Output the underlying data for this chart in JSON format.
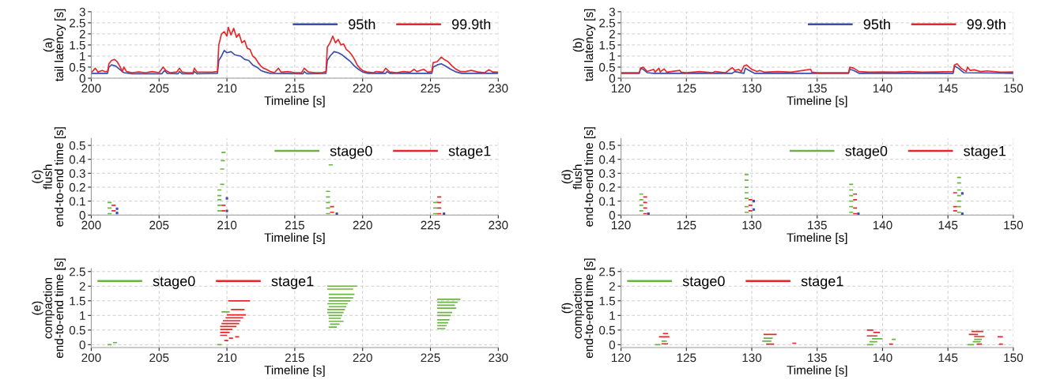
{
  "chart_data": [
    {
      "type": "line",
      "ylabel": "(a)\ntail latency [s]",
      "xlabel": "Timeline [s]",
      "xlim": [
        200,
        230
      ],
      "xticks": [
        200,
        205,
        210,
        215,
        220,
        225,
        230
      ],
      "ylim": [
        0,
        3
      ],
      "yticks": [
        0,
        0.5,
        1,
        1.5,
        2,
        2.5,
        3
      ],
      "grid": true,
      "legend": "top right",
      "line_style": "solid",
      "marker": "none",
      "series": [
        {
          "name": "95th",
          "color": "#3a4fa8",
          "x": [
            200,
            201.2,
            201.3,
            201.5,
            201.8,
            202.1,
            202.4,
            203,
            205.2,
            205.4,
            205.6,
            206.4,
            206.5,
            206.7,
            207.5,
            207.6,
            207.8,
            209.3,
            209.4,
            209.6,
            209.8,
            210,
            210.3,
            210.6,
            211,
            211.3,
            211.6,
            211.9,
            212.2,
            212.5,
            212.8,
            213.2,
            215.6,
            215.7,
            215.9,
            217.3,
            217.4,
            217.6,
            217.9,
            218.2,
            218.5,
            218.8,
            219.1,
            219.4,
            219.7,
            220,
            220.4,
            221.7,
            221.8,
            222,
            225.1,
            225.2,
            225.5,
            225.8,
            226.1,
            226.5,
            226.9,
            227.3,
            230
          ],
          "values": [
            0.22,
            0.22,
            0.5,
            0.6,
            0.55,
            0.4,
            0.25,
            0.2,
            0.2,
            0.35,
            0.22,
            0.2,
            0.3,
            0.2,
            0.2,
            0.3,
            0.2,
            0.22,
            0.8,
            1.0,
            1.25,
            1.15,
            1.2,
            1.05,
            1.0,
            0.85,
            0.8,
            0.6,
            0.5,
            0.35,
            0.28,
            0.22,
            0.2,
            0.3,
            0.2,
            0.22,
            0.8,
            1.0,
            1.2,
            1.15,
            1.05,
            0.9,
            0.75,
            0.55,
            0.4,
            0.28,
            0.22,
            0.22,
            0.3,
            0.22,
            0.22,
            0.5,
            0.6,
            0.65,
            0.55,
            0.4,
            0.28,
            0.22,
            0.22
          ]
        },
        {
          "name": "99.9th",
          "color": "#e8262a",
          "x": [
            200,
            200.3,
            200.5,
            200.8,
            201,
            201.2,
            201.3,
            201.5,
            201.7,
            201.9,
            202.1,
            202.3,
            202.4,
            202.6,
            203,
            203.5,
            204,
            204.5,
            205,
            205.3,
            205.5,
            205.8,
            206.3,
            206.5,
            206.7,
            207,
            207.5,
            207.6,
            207.8,
            208.5,
            209,
            209.3,
            209.4,
            209.6,
            209.8,
            210,
            210.1,
            210.3,
            210.5,
            210.7,
            210.9,
            211.1,
            211.3,
            211.5,
            211.7,
            211.9,
            212.1,
            212.3,
            212.5,
            212.7,
            212.9,
            213.2,
            213.5,
            213.8,
            214,
            214.5,
            215,
            215.5,
            215.7,
            216,
            216.5,
            217,
            217.3,
            217.4,
            217.6,
            217.8,
            218,
            218.2,
            218.4,
            218.6,
            218.8,
            219,
            219.2,
            219.4,
            219.6,
            219.8,
            220,
            220.3,
            220.8,
            221,
            221.5,
            221.7,
            222,
            222.5,
            223,
            223.5,
            223.8,
            224,
            224.5,
            224.8,
            225.1,
            225.2,
            225.5,
            225.8,
            226,
            226.3,
            226.6,
            226.9,
            227.2,
            227.6,
            228,
            228.5,
            229,
            229.3,
            229.6,
            230
          ],
          "values": [
            0.25,
            0.45,
            0.28,
            0.35,
            0.3,
            0.3,
            0.65,
            0.8,
            0.85,
            0.75,
            0.55,
            0.3,
            0.5,
            0.3,
            0.25,
            0.28,
            0.25,
            0.3,
            0.25,
            0.5,
            0.35,
            0.25,
            0.28,
            0.45,
            0.28,
            0.25,
            0.25,
            0.45,
            0.28,
            0.27,
            0.28,
            0.3,
            1.5,
            2.0,
            2.1,
            1.9,
            2.3,
            1.95,
            2.25,
            1.85,
            2.0,
            1.6,
            1.7,
            1.35,
            1.3,
            1.0,
            0.9,
            0.7,
            0.55,
            0.45,
            0.4,
            0.3,
            0.25,
            0.45,
            0.27,
            0.3,
            0.25,
            0.25,
            0.45,
            0.28,
            0.25,
            0.25,
            0.3,
            1.4,
            1.6,
            1.9,
            1.6,
            1.75,
            1.5,
            1.55,
            1.3,
            1.2,
            1.05,
            0.85,
            0.6,
            0.45,
            0.35,
            0.28,
            0.25,
            0.3,
            0.27,
            0.45,
            0.28,
            0.25,
            0.3,
            0.27,
            0.4,
            0.3,
            0.4,
            0.27,
            0.3,
            0.7,
            0.75,
            0.95,
            0.85,
            0.75,
            0.55,
            0.4,
            0.3,
            0.3,
            0.35,
            0.28,
            0.25,
            0.38,
            0.28,
            0.27
          ]
        }
      ]
    },
    {
      "type": "line",
      "ylabel": "(b)\ntail latency [s]",
      "xlabel": "Timeline [s]",
      "xlim": [
        120,
        150
      ],
      "xticks": [
        120,
        125,
        130,
        135,
        140,
        145,
        150
      ],
      "ylim": [
        0,
        3
      ],
      "yticks": [
        0,
        0.5,
        1,
        1.5,
        2,
        2.5,
        3
      ],
      "grid": true,
      "legend": "top right",
      "line_style": "solid",
      "marker": "none",
      "series": [
        {
          "name": "95th",
          "color": "#3a4fa8",
          "x": [
            120,
            121.4,
            121.5,
            121.7,
            122,
            122.5,
            128.5,
            128.7,
            129.4,
            129.5,
            129.8,
            130.2,
            137.4,
            137.5,
            137.8,
            138.2,
            145.4,
            145.5,
            145.8,
            146.2,
            150
          ],
          "values": [
            0.22,
            0.22,
            0.45,
            0.4,
            0.25,
            0.22,
            0.22,
            0.3,
            0.22,
            0.45,
            0.35,
            0.22,
            0.22,
            0.4,
            0.35,
            0.22,
            0.22,
            0.55,
            0.45,
            0.25,
            0.22
          ]
        },
        {
          "name": "99.9th",
          "color": "#e8262a",
          "x": [
            120,
            121.4,
            121.5,
            121.7,
            122,
            122.5,
            122.6,
            122.9,
            123,
            123.3,
            123.5,
            124.5,
            124.6,
            125,
            126,
            127,
            127.2,
            128,
            128.5,
            128.7,
            129,
            129.2,
            129.4,
            129.6,
            130,
            130.4,
            130.6,
            131,
            132,
            133,
            134.5,
            134.6,
            135,
            137.4,
            137.5,
            137.8,
            138.2,
            139,
            140,
            141,
            142,
            143,
            144,
            145.4,
            145.5,
            145.7,
            146,
            146.4,
            146.5,
            146.7,
            147,
            147.5,
            148,
            149,
            150
          ],
          "values": [
            0.25,
            0.25,
            0.45,
            0.5,
            0.3,
            0.4,
            0.27,
            0.45,
            0.28,
            0.42,
            0.27,
            0.35,
            0.27,
            0.25,
            0.3,
            0.25,
            0.3,
            0.25,
            0.48,
            0.35,
            0.4,
            0.3,
            0.55,
            0.6,
            0.4,
            0.3,
            0.35,
            0.27,
            0.3,
            0.27,
            0.4,
            0.27,
            0.25,
            0.25,
            0.5,
            0.45,
            0.3,
            0.27,
            0.28,
            0.27,
            0.3,
            0.27,
            0.28,
            0.3,
            0.6,
            0.65,
            0.45,
            0.3,
            0.5,
            0.35,
            0.38,
            0.3,
            0.33,
            0.27,
            0.28
          ]
        }
      ]
    },
    {
      "type": "line",
      "ylabel": "(c)\nflush\nend-to-end time [s]",
      "xlabel": "Timeline [s]",
      "xlim": [
        200,
        230
      ],
      "xticks": [
        200,
        205,
        210,
        215,
        220,
        225,
        230
      ],
      "ylim": [
        0,
        0.55
      ],
      "yticks": [
        0,
        0.1,
        0.2,
        0.3,
        0.4,
        0.5
      ],
      "grid": true,
      "legend": "top right",
      "line_style": "solid",
      "marker": "none",
      "series": [
        {
          "name": "stage0",
          "color": "#6ab344",
          "x": [
            201.2,
            201.5
          ],
          "values": [
            0.09,
            0.09
          ]
        },
        {
          "color": "#6ab344",
          "x": [
            201.2,
            201.5
          ],
          "values": [
            0.05,
            0.05
          ]
        },
        {
          "color": "#6ab344",
          "x": [
            201.2,
            201.5
          ],
          "values": [
            0.01,
            0.01
          ]
        },
        {
          "color": "#6ab344",
          "x": [
            209.3,
            209.6
          ],
          "values": [
            0.07,
            0.07
          ]
        },
        {
          "color": "#6ab344",
          "x": [
            209.3,
            209.6
          ],
          "values": [
            0.03,
            0.03
          ]
        },
        {
          "color": "#6ab344",
          "x": [
            209.6,
            209.9
          ],
          "values": [
            0.45,
            0.45
          ]
        },
        {
          "color": "#6ab344",
          "x": [
            209.55,
            209.85
          ],
          "values": [
            0.39,
            0.39
          ]
        },
        {
          "color": "#6ab344",
          "x": [
            209.5,
            209.8
          ],
          "values": [
            0.33,
            0.33
          ]
        },
        {
          "color": "#6ab344",
          "x": [
            209.5,
            209.8
          ],
          "values": [
            0.22,
            0.22
          ]
        },
        {
          "color": "#6ab344",
          "x": [
            209.3,
            209.6
          ],
          "values": [
            0.18,
            0.18
          ]
        },
        {
          "color": "#6ab344",
          "x": [
            209.3,
            209.6
          ],
          "values": [
            0.14,
            0.14
          ]
        },
        {
          "color": "#6ab344",
          "x": [
            209.3,
            209.6
          ],
          "values": [
            0.11,
            0.11
          ]
        },
        {
          "color": "#6ab344",
          "x": [
            217.5,
            217.8
          ],
          "values": [
            0.36,
            0.36
          ]
        },
        {
          "color": "#6ab344",
          "x": [
            217.3,
            217.6
          ],
          "values": [
            0.17,
            0.17
          ]
        },
        {
          "color": "#6ab344",
          "x": [
            217.3,
            217.6
          ],
          "values": [
            0.13,
            0.13
          ]
        },
        {
          "color": "#6ab344",
          "x": [
            217.3,
            217.6
          ],
          "values": [
            0.09,
            0.09
          ]
        },
        {
          "color": "#6ab344",
          "x": [
            217.3,
            217.6
          ],
          "values": [
            0.05,
            0.05
          ]
        },
        {
          "color": "#6ab344",
          "x": [
            217.3,
            217.6
          ],
          "values": [
            0.01,
            0.01
          ]
        },
        {
          "color": "#6ab344",
          "x": [
            225.2,
            225.5
          ],
          "values": [
            0.09,
            0.09
          ]
        },
        {
          "color": "#6ab344",
          "x": [
            225.2,
            225.5
          ],
          "values": [
            0.05,
            0.05
          ]
        },
        {
          "color": "#6ab344",
          "x": [
            225.2,
            225.5
          ],
          "values": [
            0.01,
            0.01
          ]
        },
        {
          "name": "stage1",
          "color": "#e8262a",
          "x": [
            201.5,
            201.8
          ],
          "values": [
            0.07,
            0.07
          ]
        },
        {
          "color": "#e8262a",
          "x": [
            201.5,
            201.8
          ],
          "values": [
            0.03,
            0.03
          ]
        },
        {
          "color": "#e8262a",
          "x": [
            209.6,
            209.9
          ],
          "values": [
            0.07,
            0.07
          ]
        },
        {
          "color": "#e8262a",
          "x": [
            209.6,
            209.9
          ],
          "values": [
            0.03,
            0.03
          ]
        },
        {
          "color": "#e8262a",
          "x": [
            217.6,
            217.9
          ],
          "values": [
            0.06,
            0.06
          ]
        },
        {
          "color": "#e8262a",
          "x": [
            217.6,
            217.9
          ],
          "values": [
            0.02,
            0.02
          ]
        },
        {
          "color": "#e8262a",
          "x": [
            225.5,
            225.8
          ],
          "values": [
            0.13,
            0.13
          ]
        },
        {
          "color": "#e8262a",
          "x": [
            225.5,
            225.8
          ],
          "values": [
            0.09,
            0.09
          ]
        },
        {
          "color": "#e8262a",
          "x": [
            225.5,
            225.8
          ],
          "values": [
            0.05,
            0.05
          ]
        },
        {
          "color": "#e8262a",
          "x": [
            225.5,
            225.8
          ],
          "values": [
            0.01,
            0.01
          ]
        },
        {
          "type": "scatter",
          "color": "#3a4fa8",
          "marker": "square",
          "x": [
            201.9,
            201.9,
            210.0,
            210.0,
            218.1,
            226.0
          ],
          "values": [
            0.045,
            0.015,
            0.12,
            0.03,
            0.01,
            0.01
          ]
        }
      ]
    },
    {
      "type": "line",
      "ylabel": "(d)\nflush\nend-to-end time [s]",
      "xlabel": "Timeline [s]",
      "xlim": [
        120,
        150
      ],
      "xticks": [
        120,
        125,
        130,
        135,
        140,
        145,
        150
      ],
      "ylim": [
        0,
        0.55
      ],
      "yticks": [
        0,
        0.1,
        0.2,
        0.3,
        0.4,
        0.5
      ],
      "grid": true,
      "legend": "top right",
      "line_style": "solid",
      "marker": "none",
      "series": [
        {
          "name": "stage0",
          "color": "#6ab344",
          "x": [
            121.4,
            121.7
          ],
          "values": [
            0.15,
            0.15
          ]
        },
        {
          "color": "#6ab344",
          "x": [
            121.4,
            121.7
          ],
          "values": [
            0.11,
            0.11
          ]
        },
        {
          "color": "#6ab344",
          "x": [
            121.4,
            121.7
          ],
          "values": [
            0.07,
            0.07
          ]
        },
        {
          "color": "#6ab344",
          "x": [
            121.4,
            121.7
          ],
          "values": [
            0.03,
            0.03
          ]
        },
        {
          "color": "#6ab344",
          "x": [
            129.45,
            129.75
          ],
          "values": [
            0.29,
            0.29
          ]
        },
        {
          "color": "#6ab344",
          "x": [
            129.45,
            129.75
          ],
          "values": [
            0.25,
            0.25
          ]
        },
        {
          "color": "#6ab344",
          "x": [
            129.45,
            129.75
          ],
          "values": [
            0.2,
            0.2
          ]
        },
        {
          "color": "#6ab344",
          "x": [
            129.45,
            129.75
          ],
          "values": [
            0.16,
            0.16
          ]
        },
        {
          "color": "#6ab344",
          "x": [
            129.45,
            129.75
          ],
          "values": [
            0.12,
            0.12
          ]
        },
        {
          "color": "#6ab344",
          "x": [
            129.45,
            129.75
          ],
          "values": [
            0.06,
            0.06
          ]
        },
        {
          "color": "#6ab344",
          "x": [
            129.45,
            129.75
          ],
          "values": [
            0.02,
            0.02
          ]
        },
        {
          "color": "#6ab344",
          "x": [
            137.45,
            137.75
          ],
          "values": [
            0.22,
            0.22
          ]
        },
        {
          "color": "#6ab344",
          "x": [
            137.45,
            137.75
          ],
          "values": [
            0.18,
            0.18
          ]
        },
        {
          "color": "#6ab344",
          "x": [
            137.45,
            137.75
          ],
          "values": [
            0.14,
            0.14
          ]
        },
        {
          "color": "#6ab344",
          "x": [
            137.45,
            137.75
          ],
          "values": [
            0.1,
            0.1
          ]
        },
        {
          "color": "#6ab344",
          "x": [
            137.45,
            137.75
          ],
          "values": [
            0.06,
            0.06
          ]
        },
        {
          "color": "#6ab344",
          "x": [
            137.45,
            137.75
          ],
          "values": [
            0.02,
            0.02
          ]
        },
        {
          "color": "#6ab344",
          "x": [
            145.7,
            146.0
          ],
          "values": [
            0.27,
            0.27
          ]
        },
        {
          "color": "#6ab344",
          "x": [
            145.7,
            146.0
          ],
          "values": [
            0.23,
            0.23
          ]
        },
        {
          "color": "#6ab344",
          "x": [
            145.7,
            146.0
          ],
          "values": [
            0.18,
            0.18
          ]
        },
        {
          "color": "#6ab344",
          "x": [
            145.7,
            146.0
          ],
          "values": [
            0.14,
            0.14
          ]
        },
        {
          "color": "#6ab344",
          "x": [
            145.7,
            146.0
          ],
          "values": [
            0.1,
            0.1
          ]
        },
        {
          "color": "#6ab344",
          "x": [
            145.7,
            146.0
          ],
          "values": [
            0.06,
            0.06
          ]
        },
        {
          "color": "#6ab344",
          "x": [
            145.7,
            146.0
          ],
          "values": [
            0.02,
            0.02
          ]
        },
        {
          "name": "stage1",
          "color": "#e8262a",
          "x": [
            121.7,
            122.0
          ],
          "values": [
            0.13,
            0.13
          ]
        },
        {
          "color": "#e8262a",
          "x": [
            121.7,
            122.0
          ],
          "values": [
            0.09,
            0.09
          ]
        },
        {
          "color": "#e8262a",
          "x": [
            121.7,
            122.0
          ],
          "values": [
            0.05,
            0.05
          ]
        },
        {
          "color": "#e8262a",
          "x": [
            121.7,
            122.0
          ],
          "values": [
            0.01,
            0.01
          ]
        },
        {
          "color": "#e8262a",
          "x": [
            129.75,
            130.05
          ],
          "values": [
            0.11,
            0.11
          ]
        },
        {
          "color": "#e8262a",
          "x": [
            129.75,
            130.05
          ],
          "values": [
            0.07,
            0.07
          ]
        },
        {
          "color": "#e8262a",
          "x": [
            129.75,
            130.05
          ],
          "values": [
            0.03,
            0.03
          ]
        },
        {
          "color": "#e8262a",
          "x": [
            137.75,
            138.05
          ],
          "values": [
            0.15,
            0.15
          ]
        },
        {
          "color": "#e8262a",
          "x": [
            137.75,
            138.05
          ],
          "values": [
            0.11,
            0.11
          ]
        },
        {
          "color": "#e8262a",
          "x": [
            137.75,
            138.05
          ],
          "values": [
            0.05,
            0.05
          ]
        },
        {
          "color": "#e8262a",
          "x": [
            137.75,
            138.05
          ],
          "values": [
            0.01,
            0.01
          ]
        },
        {
          "color": "#e8262a",
          "x": [
            145.4,
            145.7
          ],
          "values": [
            0.16,
            0.16
          ]
        },
        {
          "color": "#e8262a",
          "x": [
            145.4,
            145.7
          ],
          "values": [
            0.06,
            0.06
          ]
        },
        {
          "color": "#e8262a",
          "x": [
            145.4,
            145.7
          ],
          "values": [
            0.03,
            0.03
          ]
        },
        {
          "type": "scatter",
          "color": "#3a4fa8",
          "marker": "square",
          "x": [
            122.1,
            130.15,
            130.15,
            138.15,
            146.1,
            146.1
          ],
          "values": [
            0.01,
            0.1,
            0.04,
            0.01,
            0.155,
            0.01
          ]
        }
      ]
    },
    {
      "type": "line",
      "ylabel": "(e)\ncompaction\nend-to-end time [s]",
      "xlabel": "Timeline [s]",
      "xlim": [
        200,
        230
      ],
      "xticks": [
        200,
        205,
        210,
        215,
        220,
        225,
        230
      ],
      "ylim": [
        -0.1,
        2.6
      ],
      "yticks": [
        0,
        0.5,
        1,
        1.5,
        2,
        2.5
      ],
      "grid": true,
      "legend": "top left",
      "line_style": "solid",
      "marker": "none",
      "series": [
        {
          "name": "stage0",
          "color": "#6ab344",
          "x": [
            201.2,
            201.5
          ],
          "values": [
            0.0,
            0.0
          ]
        },
        {
          "color": "#6ab344",
          "x": [
            201.6,
            201.9
          ],
          "values": [
            0.07,
            0.07
          ]
        },
        {
          "color": "#6ab344",
          "x": [
            209.3,
            209.6
          ],
          "values": [
            0.0,
            0.0
          ]
        },
        {
          "color": "#6ab344",
          "x": [
            209.6,
            210.2
          ],
          "values": [
            1.12,
            1.12
          ]
        },
        {
          "color": "#6ab344",
          "x": [
            217.4,
            219.6
          ],
          "values": [
            2.0,
            2.0
          ]
        },
        {
          "color": "#6ab344",
          "x": [
            217.4,
            219.3
          ],
          "values": [
            1.9,
            1.9
          ]
        },
        {
          "color": "#6ab344",
          "x": [
            217.5,
            219.4
          ],
          "values": [
            1.72,
            1.72
          ]
        },
        {
          "color": "#6ab344",
          "x": [
            217.5,
            219.3
          ],
          "values": [
            1.6,
            1.6
          ]
        },
        {
          "color": "#6ab344",
          "x": [
            217.5,
            219.1
          ],
          "values": [
            1.5,
            1.5
          ]
        },
        {
          "color": "#6ab344",
          "x": [
            217.4,
            218.9
          ],
          "values": [
            1.4,
            1.4
          ]
        },
        {
          "color": "#6ab344",
          "x": [
            217.5,
            218.8
          ],
          "values": [
            1.3,
            1.3
          ]
        },
        {
          "color": "#6ab344",
          "x": [
            217.4,
            218.7
          ],
          "values": [
            1.2,
            1.2
          ]
        },
        {
          "color": "#6ab344",
          "x": [
            217.4,
            218.6
          ],
          "values": [
            1.1,
            1.1
          ]
        },
        {
          "color": "#6ab344",
          "x": [
            217.5,
            218.5
          ],
          "values": [
            1.0,
            1.0
          ]
        },
        {
          "color": "#6ab344",
          "x": [
            217.5,
            218.4
          ],
          "values": [
            0.9,
            0.9
          ]
        },
        {
          "color": "#6ab344",
          "x": [
            217.5,
            218.6
          ],
          "values": [
            0.8,
            0.8
          ]
        },
        {
          "color": "#6ab344",
          "x": [
            217.6,
            218.3
          ],
          "values": [
            0.7,
            0.7
          ]
        },
        {
          "color": "#6ab344",
          "x": [
            217.5,
            218.1
          ],
          "values": [
            0.6,
            0.6
          ]
        },
        {
          "color": "#6ab344",
          "x": [
            225.5,
            227.2
          ],
          "values": [
            1.55,
            1.55
          ]
        },
        {
          "color": "#6ab344",
          "x": [
            225.5,
            227.0
          ],
          "values": [
            1.45,
            1.45
          ]
        },
        {
          "color": "#6ab344",
          "x": [
            225.5,
            226.8
          ],
          "values": [
            1.35,
            1.35
          ]
        },
        {
          "color": "#6ab344",
          "x": [
            225.5,
            226.9
          ],
          "values": [
            1.25,
            1.25
          ]
        },
        {
          "color": "#6ab344",
          "x": [
            225.5,
            226.6
          ],
          "values": [
            1.1,
            1.1
          ]
        },
        {
          "color": "#6ab344",
          "x": [
            225.5,
            226.5
          ],
          "values": [
            1.0,
            1.0
          ]
        },
        {
          "color": "#6ab344",
          "x": [
            225.5,
            226.4
          ],
          "values": [
            0.85,
            0.85
          ]
        },
        {
          "color": "#6ab344",
          "x": [
            225.5,
            226.3
          ],
          "values": [
            0.75,
            0.75
          ]
        },
        {
          "color": "#6ab344",
          "x": [
            225.5,
            226.2
          ],
          "values": [
            0.65,
            0.65
          ]
        },
        {
          "color": "#6ab344",
          "x": [
            225.5,
            226.1
          ],
          "values": [
            0.55,
            0.55
          ]
        },
        {
          "name": "stage1",
          "color": "#e8262a",
          "x": [
            210.1,
            211.7
          ],
          "values": [
            1.5,
            1.5
          ]
        },
        {
          "color": "#e8262a",
          "x": [
            210.3,
            211.3
          ],
          "values": [
            1.2,
            1.2
          ]
        },
        {
          "color": "#e8262a",
          "x": [
            210.0,
            211.4
          ],
          "values": [
            1.02,
            1.02
          ]
        },
        {
          "color": "#e8262a",
          "x": [
            209.9,
            211.2
          ],
          "values": [
            0.92,
            0.92
          ]
        },
        {
          "color": "#e8262a",
          "x": [
            209.7,
            211.0
          ],
          "values": [
            0.82,
            0.82
          ]
        },
        {
          "color": "#e8262a",
          "x": [
            209.6,
            210.9
          ],
          "values": [
            0.72,
            0.72
          ]
        },
        {
          "color": "#e8262a",
          "x": [
            209.5,
            210.7
          ],
          "values": [
            0.62,
            0.62
          ]
        },
        {
          "color": "#e8262a",
          "x": [
            209.5,
            210.4
          ],
          "values": [
            0.52,
            0.52
          ]
        },
        {
          "color": "#e8262a",
          "x": [
            209.5,
            210.2
          ],
          "values": [
            0.42,
            0.42
          ]
        },
        {
          "color": "#e8262a",
          "x": [
            209.5,
            210.0
          ],
          "values": [
            0.32,
            0.32
          ]
        },
        {
          "color": "#e8262a",
          "x": [
            210.6,
            210.9
          ],
          "values": [
            0.27,
            0.27
          ]
        },
        {
          "color": "#e8262a",
          "x": [
            209.8,
            210.1
          ],
          "values": [
            0.14,
            0.14
          ]
        },
        {
          "color": "#e8262a",
          "x": [
            210.15,
            210.45
          ],
          "values": [
            0.22,
            0.22
          ]
        }
      ]
    },
    {
      "type": "line",
      "ylabel": "(f)\ncompaction\nend-to-end time [s]",
      "xlabel": "Timeline [s]",
      "xlim": [
        120,
        150
      ],
      "xticks": [
        120,
        125,
        130,
        135,
        140,
        145,
        150
      ],
      "ylim": [
        -0.1,
        2.6
      ],
      "yticks": [
        0,
        0.5,
        1,
        1.5,
        2,
        2.5
      ],
      "grid": true,
      "legend": "top left",
      "line_style": "solid",
      "marker": "none",
      "series": [
        {
          "name": "stage0",
          "color": "#6ab344",
          "x": [
            122.6,
            123.0
          ],
          "values": [
            0.0,
            0.0
          ]
        },
        {
          "color": "#6ab344",
          "x": [
            123.1,
            123.5
          ],
          "values": [
            0.12,
            0.12
          ]
        },
        {
          "color": "#6ab344",
          "x": [
            130.8,
            131.5
          ],
          "values": [
            0.12,
            0.12
          ]
        },
        {
          "color": "#6ab344",
          "x": [
            130.9,
            131.6
          ],
          "values": [
            0.22,
            0.22
          ]
        },
        {
          "color": "#6ab344",
          "x": [
            138.8,
            139.3
          ],
          "values": [
            0.0,
            0.0
          ]
        },
        {
          "color": "#6ab344",
          "x": [
            139.0,
            139.6
          ],
          "values": [
            0.1,
            0.1
          ]
        },
        {
          "color": "#6ab344",
          "x": [
            139.2,
            140.0
          ],
          "values": [
            0.2,
            0.2
          ]
        },
        {
          "color": "#6ab344",
          "x": [
            140.7,
            141.0
          ],
          "values": [
            0.18,
            0.18
          ]
        },
        {
          "color": "#6ab344",
          "x": [
            146.5,
            147.0
          ],
          "values": [
            0.0,
            0.0
          ]
        },
        {
          "color": "#6ab344",
          "x": [
            146.9,
            147.5
          ],
          "values": [
            0.1,
            0.1
          ]
        },
        {
          "color": "#6ab344",
          "x": [
            147.0,
            147.6
          ],
          "values": [
            0.18,
            0.18
          ]
        },
        {
          "name": "stage1",
          "color": "#e8262a",
          "x": [
            123.2,
            123.6
          ],
          "values": [
            0.38,
            0.38
          ]
        },
        {
          "color": "#e8262a",
          "x": [
            122.9,
            123.7
          ],
          "values": [
            0.27,
            0.27
          ]
        },
        {
          "color": "#e8262a",
          "x": [
            123.1,
            123.6
          ],
          "values": [
            0.03,
            0.03
          ]
        },
        {
          "color": "#e8262a",
          "x": [
            130.9,
            131.9
          ],
          "values": [
            0.35,
            0.35
          ]
        },
        {
          "color": "#e8262a",
          "x": [
            131.1,
            131.7
          ],
          "values": [
            0.02,
            0.02
          ]
        },
        {
          "color": "#e8262a",
          "x": [
            133.1,
            133.4
          ],
          "values": [
            0.05,
            0.05
          ]
        },
        {
          "color": "#e8262a",
          "x": [
            138.8,
            139.3
          ],
          "values": [
            0.5,
            0.5
          ]
        },
        {
          "color": "#e8262a",
          "x": [
            139.3,
            139.8
          ],
          "values": [
            0.42,
            0.42
          ]
        },
        {
          "color": "#e8262a",
          "x": [
            138.8,
            139.6
          ],
          "values": [
            0.3,
            0.3
          ]
        },
        {
          "color": "#e8262a",
          "x": [
            140.5,
            140.8
          ],
          "values": [
            0.02,
            0.02
          ]
        },
        {
          "color": "#e8262a",
          "x": [
            146.8,
            147.7
          ],
          "values": [
            0.45,
            0.45
          ]
        },
        {
          "color": "#e8262a",
          "x": [
            146.6,
            147.3
          ],
          "values": [
            0.35,
            0.35
          ]
        },
        {
          "color": "#e8262a",
          "x": [
            147.0,
            147.8
          ],
          "values": [
            0.28,
            0.28
          ]
        },
        {
          "color": "#e8262a",
          "x": [
            147.2,
            147.6
          ],
          "values": [
            0.02,
            0.02
          ]
        },
        {
          "color": "#e8262a",
          "x": [
            148.8,
            149.2
          ],
          "values": [
            0.27,
            0.27
          ]
        },
        {
          "color": "#e8262a",
          "x": [
            148.9,
            149.2
          ],
          "values": [
            0.02,
            0.02
          ]
        }
      ]
    }
  ]
}
